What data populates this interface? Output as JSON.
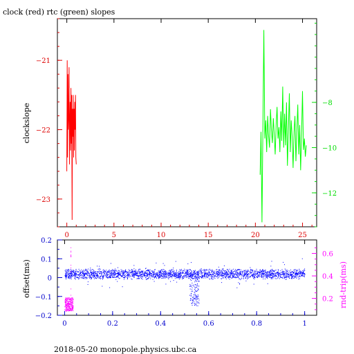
{
  "chart_data": [
    {
      "type": "line",
      "title": "clock (red) rtc (green) slopes",
      "ylabel": "clockslope",
      "xlim": [
        -1,
        26.5
      ],
      "xticks": [
        0,
        5,
        10,
        15,
        20,
        25
      ],
      "left_axis": {
        "ylim": [
          -23.4,
          -20.4
        ],
        "ticks": [
          -21,
          -22,
          -23
        ],
        "color": "#dd0000"
      },
      "right_axis": {
        "ylim": [
          -13.5,
          -4.3
        ],
        "ticks": [
          -8,
          -10,
          -12
        ],
        "color": "#00dd00"
      },
      "series": [
        {
          "color": "#ff0000",
          "axis": "left",
          "x": [
            0.0,
            0.04,
            0.08,
            0.12,
            0.16,
            0.2,
            0.24,
            0.28,
            0.32,
            0.36,
            0.4,
            0.44,
            0.48,
            0.52,
            0.56,
            0.6,
            0.64,
            0.68,
            0.72,
            0.76,
            0.8,
            0.84,
            0.88,
            0.92,
            0.96,
            1.0
          ],
          "values": [
            -22.6,
            -21.0,
            -22.4,
            -21.2,
            -22.0,
            -21.8,
            -21.1,
            -22.5,
            -21.9,
            -21.6,
            -22.3,
            -21.4,
            -22.2,
            -21.5,
            -23.3,
            -21.7,
            -22.1,
            -21.5,
            -22.4,
            -21.7,
            -22.3,
            -21.6,
            -22.0,
            -21.5,
            -22.4,
            -22.5
          ]
        },
        {
          "color": "#00ff00",
          "axis": "right",
          "x": [
            20.5,
            20.6,
            20.7,
            20.8,
            20.9,
            21.0,
            21.1,
            21.2,
            21.3,
            21.4,
            21.5,
            21.6,
            21.7,
            21.8,
            21.9,
            22.0,
            22.1,
            22.2,
            22.3,
            22.4,
            22.5,
            22.6,
            22.7,
            22.8,
            22.9,
            23.0,
            23.1,
            23.2,
            23.3,
            23.4,
            23.5,
            23.6,
            23.7,
            23.8,
            23.9,
            24.0,
            24.1,
            24.2,
            24.3,
            24.4,
            24.5,
            24.6,
            24.7,
            24.8,
            24.9,
            25.0,
            25.1,
            25.2,
            25.3,
            25.4
          ],
          "values": [
            -11.2,
            -9.3,
            -13.3,
            -8.9,
            -4.8,
            -9.6,
            -8.8,
            -10.2,
            -8.6,
            -9.5,
            -10.0,
            -8.3,
            -9.2,
            -9.8,
            -8.7,
            -9.4,
            -10.3,
            -9.0,
            -8.2,
            -9.6,
            -9.1,
            -10.2,
            -8.4,
            -9.7,
            -7.3,
            -10.0,
            -8.5,
            -9.9,
            -8.0,
            -10.8,
            -9.2,
            -7.6,
            -10.2,
            -8.8,
            -9.5,
            -10.9,
            -9.3,
            -8.6,
            -10.6,
            -9.2,
            -8.1,
            -10.3,
            -9.0,
            -11.0,
            -9.4,
            -7.5,
            -10.1,
            -9.6,
            -10.4,
            -9.9
          ]
        }
      ]
    },
    {
      "type": "scatter",
      "ylabel": "offset(ms)",
      "ylabel_right": "rnd-trip(ms)",
      "xlim": [
        -0.03,
        1.05
      ],
      "xticks": [
        0,
        0.2,
        0.4,
        0.6,
        0.8,
        1
      ],
      "xtick_labels": [
        "0",
        "0.2",
        "0.4",
        "0.6",
        "0.8",
        "1"
      ],
      "left_axis": {
        "ylim": [
          -0.2,
          0.2
        ],
        "ticks": [
          0.2,
          0.1,
          0,
          -0.1,
          -0.2
        ],
        "tick_labels": [
          "0.2",
          "0.1",
          "0",
          "−0.1",
          "−0.2"
        ],
        "color": "#0000cc"
      },
      "right_axis": {
        "ylim": [
          0.05,
          0.72
        ],
        "ticks": [
          0.6,
          0.4,
          0.2
        ],
        "tick_labels": [
          "0.6",
          "0.4",
          "0.2"
        ],
        "color": "#ff00ff"
      },
      "series": [
        {
          "color": "#0000ff",
          "axis": "left",
          "band": {
            "x": [
              0.0,
              1.0
            ],
            "center": 0.02,
            "halfwidth": 0.03
          },
          "dip": {
            "x": [
              0.52,
              0.56
            ],
            "min": -0.15
          }
        },
        {
          "color": "#ff00ff",
          "axis": "right",
          "band": {
            "x": [
              0.0,
              0.035
            ],
            "center": 0.15,
            "halfwidth": 0.06
          },
          "spike": {
            "x": 0.025,
            "max": 0.7
          }
        }
      ]
    }
  ],
  "footer": "2018-05-20  monopole.physics.ubc.ca"
}
